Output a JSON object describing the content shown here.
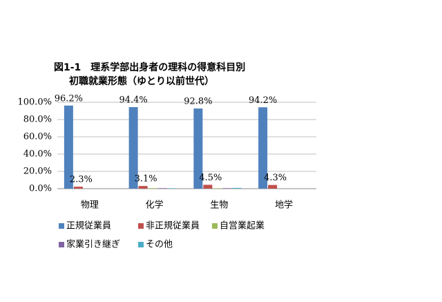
{
  "chart_data": {
    "type": "bar",
    "title": "図1-1　理系学部出身者の理科の得意科目別",
    "subtitle": "初職就業形態（ゆとり以前世代）",
    "categories": [
      "物理",
      "化学",
      "生物",
      "地学"
    ],
    "series": [
      {
        "name": "正規従業員",
        "color": "#4f81bd",
        "values": [
          96.2,
          94.4,
          92.8,
          94.2
        ],
        "value_labels": [
          "96.2%",
          "94.4%",
          "92.8%",
          "94.2%"
        ]
      },
      {
        "name": "非正規従業員",
        "color": "#c0504d",
        "values": [
          2.3,
          3.1,
          4.5,
          4.3
        ],
        "value_labels": [
          "2.3%",
          "3.1%",
          "4.5%",
          "4.3%"
        ]
      },
      {
        "name": "自営業起業",
        "color": "#9bbb59",
        "values": [
          0,
          0.6,
          0.5,
          0
        ]
      },
      {
        "name": "家業引き継ぎ",
        "color": "#8064a2",
        "values": [
          0,
          0.6,
          0.6,
          0
        ]
      },
      {
        "name": "その他",
        "color": "#4bacc6",
        "values": [
          0,
          0.5,
          0.9,
          0
        ]
      }
    ],
    "ylim": [
      0,
      100
    ],
    "yticks": [
      {
        "value": 0,
        "label": "0.0%"
      },
      {
        "value": 20,
        "label": "20.0%"
      },
      {
        "value": 40,
        "label": "40.0%"
      },
      {
        "value": 60,
        "label": "60.0%"
      },
      {
        "value": 80,
        "label": "80.0%"
      },
      {
        "value": 100,
        "label": "100.0%"
      }
    ],
    "grid": true,
    "legend": "bottom"
  }
}
